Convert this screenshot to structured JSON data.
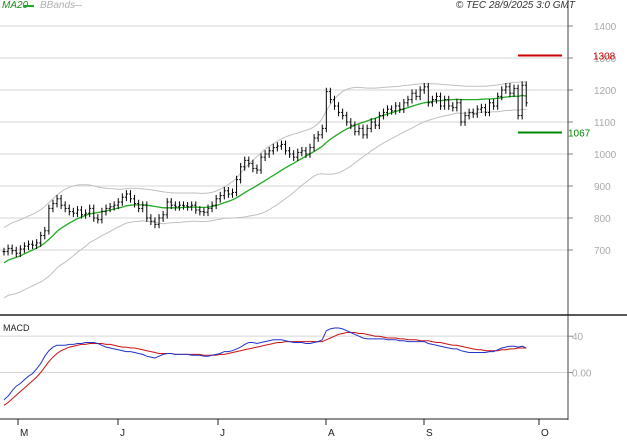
{
  "header": {
    "ma_label": "MA20",
    "bbands_label": "BBands",
    "credit": "© TEC 28/9/2025 3:0 GMT"
  },
  "colors": {
    "price_bar": "#000000",
    "ma20": "#22aa22",
    "bbands": "#c0c0c0",
    "grid": "#d6d6d6",
    "resistance": "#cc0000",
    "support": "#008800",
    "macd_line": "#2233cc",
    "signal_line": "#cc1111"
  },
  "chart_data": [
    {
      "type": "ohlc",
      "name": "price",
      "ylim": [
        500,
        1450
      ],
      "yticks": [
        700,
        800,
        900,
        1000,
        1100,
        1200,
        1300,
        1400
      ],
      "ytick_labels": [
        "700",
        "800",
        "900",
        "1000",
        "1100",
        "1200",
        "1300",
        "1400"
      ],
      "months": [
        "M",
        "J",
        "J",
        "A",
        "S",
        "O"
      ],
      "levels": [
        {
          "label": "1308",
          "value": 1308,
          "color": "#cc0000"
        },
        {
          "label": "1067",
          "value": 1067,
          "color": "#008800"
        }
      ],
      "close": [
        695,
        705,
        698,
        690,
        703,
        712,
        718,
        715,
        722,
        745,
        760,
        830,
        845,
        860,
        840,
        830,
        820,
        815,
        825,
        810,
        815,
        830,
        800,
        795,
        820,
        830,
        835,
        840,
        850,
        865,
        875,
        860,
        845,
        830,
        840,
        800,
        790,
        780,
        800,
        810,
        850,
        840,
        835,
        840,
        838,
        835,
        840,
        825,
        820,
        818,
        830,
        840,
        860,
        870,
        885,
        875,
        880,
        920,
        960,
        980,
        970,
        955,
        950,
        990,
        1000,
        1010,
        1020,
        1025,
        1030,
        1010,
        1000,
        990,
        1005,
        1010,
        1000,
        1020,
        1050,
        1060,
        1080,
        1195,
        1170,
        1150,
        1130,
        1120,
        1100,
        1090,
        1070,
        1080,
        1060,
        1080,
        1100,
        1090,
        1120,
        1130,
        1140,
        1135,
        1150,
        1140,
        1160,
        1170,
        1190,
        1180,
        1200,
        1210,
        1160,
        1170,
        1180,
        1150,
        1170,
        1150,
        1145,
        1160,
        1100,
        1120,
        1130,
        1125,
        1140,
        1145,
        1130,
        1160,
        1150,
        1180,
        1200,
        1210,
        1190,
        1205,
        1120,
        1215,
        1160
      ],
      "ma20": [
        660,
        668,
        673,
        677,
        682,
        688,
        694,
        700,
        706,
        713,
        722,
        733,
        745,
        758,
        768,
        776,
        784,
        791,
        798,
        803,
        808,
        813,
        815,
        817,
        820,
        822,
        825,
        828,
        831,
        834,
        838,
        840,
        841,
        841,
        841,
        840,
        838,
        836,
        834,
        832,
        832,
        832,
        832,
        832,
        833,
        833,
        834,
        834,
        833,
        833,
        834,
        836,
        839,
        843,
        848,
        852,
        857,
        863,
        871,
        879,
        887,
        894,
        901,
        909,
        917,
        925,
        933,
        941,
        949,
        957,
        964,
        971,
        979,
        986,
        993,
        1000,
        1008,
        1016,
        1024,
        1036,
        1046,
        1055,
        1063,
        1071,
        1078,
        1084,
        1090,
        1095,
        1099,
        1103,
        1108,
        1112,
        1117,
        1121,
        1125,
        1129,
        1133,
        1137,
        1141,
        1145,
        1149,
        1153,
        1157,
        1160,
        1162,
        1164,
        1166,
        1167,
        1168,
        1169,
        1170,
        1171,
        1170,
        1170,
        1170,
        1170,
        1170,
        1171,
        1172,
        1172,
        1173,
        1174,
        1176,
        1178,
        1179,
        1181,
        1180,
        1183,
        1181
      ],
      "bb_upper": [
        770,
        778,
        785,
        790,
        795,
        800,
        806,
        812,
        818,
        826,
        836,
        848,
        860,
        872,
        882,
        890,
        896,
        900,
        903,
        904,
        904,
        903,
        900,
        897,
        895,
        893,
        892,
        891,
        890,
        890,
        892,
        893,
        893,
        892,
        891,
        890,
        888,
        886,
        884,
        882,
        880,
        879,
        878,
        878,
        878,
        878,
        878,
        878,
        877,
        877,
        878,
        880,
        884,
        890,
        897,
        905,
        914,
        925,
        940,
        955,
        968,
        980,
        992,
        1004,
        1015,
        1024,
        1032,
        1040,
        1047,
        1053,
        1058,
        1062,
        1066,
        1070,
        1074,
        1078,
        1085,
        1095,
        1110,
        1135,
        1155,
        1172,
        1185,
        1195,
        1202,
        1206,
        1208,
        1208,
        1207,
        1206,
        1206,
        1206,
        1207,
        1208,
        1209,
        1210,
        1211,
        1212,
        1214,
        1215,
        1217,
        1218,
        1219,
        1219,
        1219,
        1219,
        1219,
        1218,
        1217,
        1216,
        1215,
        1214,
        1213,
        1212,
        1212,
        1212,
        1212,
        1212,
        1212,
        1213,
        1214,
        1216,
        1218,
        1220,
        1222,
        1224,
        1224,
        1226,
        1224
      ],
      "bb_lower": [
        550,
        558,
        561,
        564,
        569,
        576,
        582,
        588,
        594,
        600,
        608,
        618,
        630,
        644,
        654,
        662,
        672,
        682,
        693,
        702,
        712,
        723,
        730,
        737,
        745,
        751,
        758,
        765,
        772,
        778,
        784,
        787,
        789,
        790,
        791,
        790,
        788,
        786,
        784,
        782,
        784,
        785,
        786,
        786,
        788,
        788,
        790,
        790,
        789,
        789,
        790,
        792,
        794,
        796,
        799,
        799,
        800,
        801,
        802,
        803,
        806,
        808,
        810,
        814,
        819,
        826,
        834,
        842,
        851,
        861,
        870,
        880,
        892,
        902,
        912,
        922,
        931,
        937,
        938,
        937,
        937,
        938,
        941,
        947,
        954,
        962,
        972,
        982,
        991,
        1000,
        1010,
        1018,
        1027,
        1034,
        1041,
        1048,
        1055,
        1062,
        1068,
        1075,
        1081,
        1088,
        1095,
        1101,
        1105,
        1109,
        1113,
        1116,
        1119,
        1122,
        1125,
        1128,
        1127,
        1128,
        1128,
        1128,
        1128,
        1130,
        1132,
        1131,
        1132,
        1132,
        1134,
        1136,
        1136,
        1138,
        1136,
        1140,
        1138
      ]
    },
    {
      "type": "line",
      "name": "MACD",
      "title": "MACD",
      "ylim": [
        -50,
        60
      ],
      "yticks": [
        0,
        40
      ],
      "ytick_labels": [
        "0.00",
        "40"
      ],
      "series": [
        {
          "name": "MACD",
          "values": [
            -30,
            -26,
            -20,
            -15,
            -12,
            -8,
            -4,
            -1,
            4,
            10,
            18,
            24,
            28,
            30,
            30,
            30,
            31,
            31,
            32,
            32,
            33,
            33,
            33,
            32,
            30,
            28,
            27,
            26,
            25,
            24,
            23,
            23,
            22,
            21,
            20,
            18,
            17,
            16,
            18,
            20,
            21,
            21,
            20,
            20,
            20,
            20,
            19,
            19,
            19,
            18,
            18,
            19,
            20,
            21,
            23,
            23,
            24,
            26,
            28,
            31,
            33,
            33,
            32,
            33,
            34,
            35,
            36,
            36,
            36,
            35,
            34,
            33,
            33,
            33,
            32,
            32,
            33,
            34,
            36,
            46,
            48,
            49,
            49,
            48,
            46,
            44,
            42,
            40,
            38,
            37,
            37,
            37,
            37,
            37,
            36,
            36,
            36,
            35,
            35,
            34,
            34,
            34,
            34,
            34,
            32,
            31,
            30,
            29,
            28,
            27,
            26,
            26,
            24,
            23,
            22,
            22,
            22,
            22,
            22,
            23,
            23,
            25,
            27,
            28,
            29,
            29,
            28,
            29,
            27
          ]
        },
        {
          "name": "Signal",
          "values": [
            -36,
            -33,
            -29,
            -25,
            -21,
            -17,
            -13,
            -9,
            -5,
            0,
            6,
            12,
            17,
            21,
            24,
            26,
            28,
            29,
            30,
            31,
            31,
            32,
            32,
            32,
            32,
            31,
            31,
            30,
            29,
            28,
            28,
            27,
            27,
            26,
            25,
            24,
            23,
            22,
            21,
            21,
            21,
            21,
            20,
            20,
            20,
            20,
            20,
            20,
            20,
            19,
            19,
            19,
            19,
            20,
            20,
            21,
            22,
            23,
            24,
            25,
            26,
            27,
            28,
            29,
            30,
            31,
            32,
            33,
            33,
            34,
            34,
            34,
            34,
            34,
            34,
            34,
            34,
            34,
            34,
            36,
            38,
            40,
            42,
            43,
            44,
            44,
            44,
            43,
            43,
            42,
            41,
            40,
            40,
            39,
            38,
            38,
            38,
            37,
            37,
            36,
            36,
            36,
            35,
            35,
            35,
            34,
            33,
            33,
            32,
            31,
            30,
            30,
            29,
            28,
            27,
            26,
            25,
            25,
            24,
            24,
            24,
            24,
            25,
            25,
            26,
            26,
            27,
            27,
            27
          ]
        }
      ]
    }
  ]
}
